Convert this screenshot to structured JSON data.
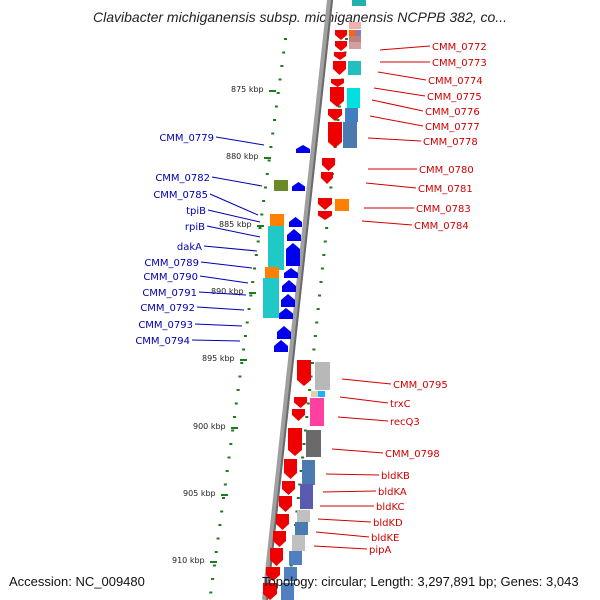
{
  "title": "Clavibacter michiganensis subsp. michiganensis NCPPB 382, co...",
  "footer": {
    "accession": "Accession: NC_009480",
    "summary": "Topology: circular; Length: 3,297,891 bp; Genes: 3,043"
  },
  "colors": {
    "forward_label": "#d00000",
    "reverse_label": "#0000b0",
    "forward_gene": "#ee0000",
    "reverse_gene": "#0000ee",
    "genome_line": "#888888",
    "tick": "#1e7a1e"
  },
  "kbp_labels": [
    "875 kbp",
    "880 kbp",
    "885 kbp",
    "890 kbp",
    "895 kbp",
    "900 kbp",
    "905 kbp",
    "910 kbp"
  ],
  "forward_labels": [
    "CMM_0772",
    "CMM_0773",
    "CMM_0774",
    "CMM_0775",
    "CMM_0776",
    "CMM_0777",
    "CMM_0778",
    "CMM_0780",
    "CMM_0781",
    "CMM_0783",
    "CMM_0784",
    "CMM_0795",
    "trxC",
    "recQ3",
    "CMM_0798",
    "bldKB",
    "bldKA",
    "bldKC",
    "bldKD",
    "bldKE",
    "pipA"
  ],
  "reverse_labels": [
    "CMM_0779",
    "CMM_0782",
    "CMM_0785",
    "tpiB",
    "rpiB",
    "dakA",
    "CMM_0789",
    "CMM_0790",
    "CMM_0791",
    "CMM_0792",
    "CMM_0793",
    "CMM_0794"
  ]
}
